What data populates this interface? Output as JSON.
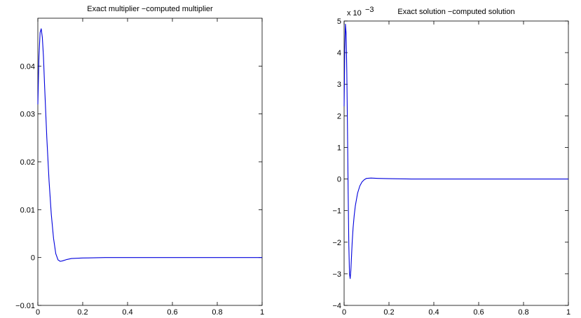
{
  "chart_data": [
    {
      "type": "line",
      "title": "Exact multiplier −computed multiplier",
      "xlabel": "",
      "ylabel": "",
      "xlim": [
        0,
        1
      ],
      "ylim": [
        -0.01,
        0.05
      ],
      "grid": false,
      "color": "#0000dd",
      "xticks": [
        0,
        0.2,
        0.4,
        0.6,
        0.8,
        1
      ],
      "xtick_labels": [
        "0",
        "0.2",
        "0.4",
        "0.6",
        "0.8",
        "1"
      ],
      "yticks": [
        -0.01,
        0,
        0.01,
        0.02,
        0.03,
        0.04
      ],
      "ytick_labels": [
        "−0.01",
        "0",
        "0.01",
        "0.02",
        "0.03",
        "0.04"
      ],
      "exponent_label": "",
      "series": [
        {
          "x": [
            0,
            0.005,
            0.01,
            0.015,
            0.02,
            0.025,
            0.03,
            0.04,
            0.05,
            0.06,
            0.07,
            0.08,
            0.09,
            0.1,
            0.11,
            0.13,
            0.15,
            0.2,
            0.3,
            0.4,
            0.6,
            0.8,
            1
          ],
          "y": [
            0.032,
            0.042,
            0.047,
            0.0478,
            0.046,
            0.042,
            0.036,
            0.025,
            0.016,
            0.009,
            0.004,
            0.0008,
            -0.0005,
            -0.0008,
            -0.0007,
            -0.0004,
            -0.0002,
            -0.0001,
            0,
            0,
            0,
            0,
            0
          ]
        }
      ]
    },
    {
      "type": "line",
      "title": "Exact solution −computed solution",
      "xlabel": "",
      "ylabel": "",
      "xlim": [
        0,
        1
      ],
      "ylim": [
        -4,
        5
      ],
      "grid": false,
      "color": "#0000dd",
      "xticks": [
        0,
        0.2,
        0.4,
        0.6,
        0.8,
        1
      ],
      "xtick_labels": [
        "0",
        "0.2",
        "0.4",
        "0.6",
        "0.8",
        "1"
      ],
      "yticks": [
        -4,
        -3,
        -2,
        -1,
        0,
        1,
        2,
        3,
        4,
        5
      ],
      "ytick_labels": [
        "−4",
        "−3",
        "−2",
        "−1",
        "0",
        "1",
        "2",
        "3",
        "4",
        "5"
      ],
      "exponent_label": "x 10",
      "exponent_power": "−3",
      "series": [
        {
          "x": [
            0,
            0.003,
            0.006,
            0.009,
            0.012,
            0.015,
            0.018,
            0.021,
            0.024,
            0.027,
            0.03,
            0.033,
            0.036,
            0.04,
            0.045,
            0.05,
            0.06,
            0.07,
            0.08,
            0.09,
            0.1,
            0.12,
            0.15,
            0.2,
            0.3,
            0.5,
            0.7,
            1
          ],
          "y": [
            2.3,
            4.1,
            4.9,
            4.6,
            3.4,
            1.6,
            -0.4,
            -2.1,
            -3.0,
            -3.15,
            -2.9,
            -2.45,
            -2.0,
            -1.55,
            -1.15,
            -0.85,
            -0.45,
            -0.22,
            -0.09,
            -0.02,
            0.02,
            0.03,
            0.02,
            0.01,
            0,
            0,
            0,
            0
          ]
        }
      ]
    }
  ]
}
